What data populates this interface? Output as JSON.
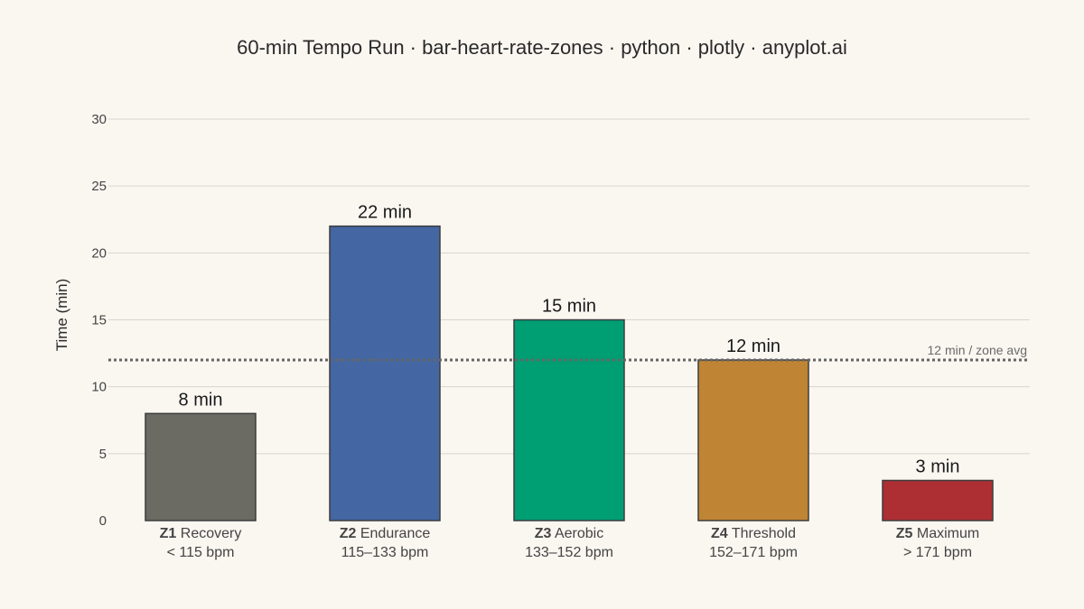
{
  "chart_data": {
    "type": "bar",
    "title": "60-min Tempo Run · bar-heart-rate-zones · python · plotly · anyplot.ai",
    "xlabel": "",
    "ylabel": "Time (min)",
    "ylim": [
      0,
      30
    ],
    "yticks": [
      0,
      5,
      10,
      15,
      20,
      25,
      30
    ],
    "grid": true,
    "categories": [
      {
        "zone": "Z1",
        "name": "Recovery",
        "range": "< 115 bpm"
      },
      {
        "zone": "Z2",
        "name": "Endurance",
        "range": "115–133 bpm"
      },
      {
        "zone": "Z3",
        "name": "Aerobic",
        "range": "133–152 bpm"
      },
      {
        "zone": "Z4",
        "name": "Threshold",
        "range": "152–171 bpm"
      },
      {
        "zone": "Z5",
        "name": "Maximum",
        "range": "> 171 bpm"
      }
    ],
    "values": [
      8,
      22,
      15,
      12,
      3
    ],
    "data_labels": [
      "8 min",
      "22 min",
      "15 min",
      "12 min",
      "3 min"
    ],
    "colors": [
      "#6B6B63",
      "#4466A2",
      "#009E73",
      "#BF8434",
      "#AD2E33"
    ],
    "reference_line": {
      "value": 12,
      "label": "12 min / zone avg",
      "style": "dotted",
      "color": "#666666"
    }
  }
}
